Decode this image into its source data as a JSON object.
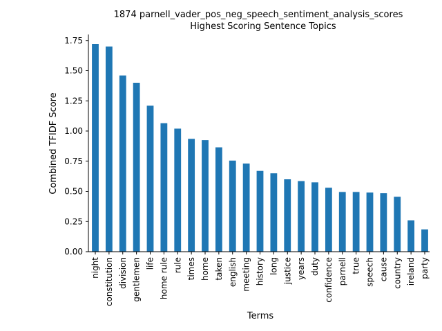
{
  "chart_data": {
    "type": "bar",
    "title": "1874 parnell_vader_pos_neg_speech_sentiment_analysis_scores",
    "subtitle": "Highest Scoring Sentence Topics",
    "xlabel": "Terms",
    "ylabel": "Combined TFIDF Score",
    "ylim": [
      0,
      1.8
    ],
    "yticks": [
      "0.00",
      "0.25",
      "0.50",
      "0.75",
      "1.00",
      "1.25",
      "1.50",
      "1.75"
    ],
    "grid": false,
    "bar_color": "#1f77b4",
    "categories": [
      "night",
      "constitution",
      "division",
      "gentlemen",
      "life",
      "home rule",
      "rule",
      "times",
      "home",
      "taken",
      "english",
      "meeting",
      "history",
      "long",
      "justice",
      "years",
      "duty",
      "confidence",
      "parnell",
      "true",
      "speech",
      "cause",
      "country",
      "ireland",
      "party"
    ],
    "values": [
      1.72,
      1.7,
      1.46,
      1.4,
      1.21,
      1.065,
      1.02,
      0.935,
      0.925,
      0.865,
      0.755,
      0.73,
      0.67,
      0.65,
      0.6,
      0.585,
      0.575,
      0.53,
      0.495,
      0.495,
      0.49,
      0.485,
      0.455,
      0.26,
      0.185
    ]
  }
}
